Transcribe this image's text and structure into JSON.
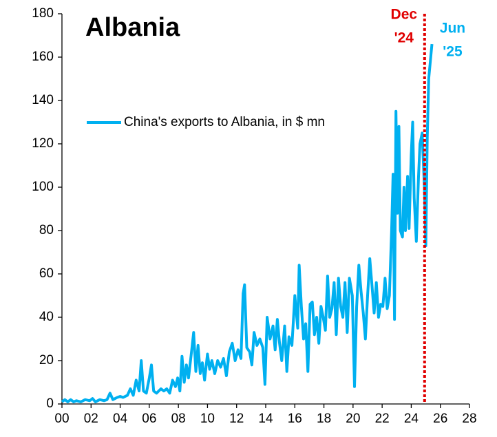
{
  "chart_data": {
    "type": "line",
    "title": "Albania",
    "xlim": [
      0,
      28
    ],
    "xticks": [
      {
        "value": 0,
        "label": "00"
      },
      {
        "value": 2,
        "label": "02"
      },
      {
        "value": 4,
        "label": "04"
      },
      {
        "value": 6,
        "label": "06"
      },
      {
        "value": 8,
        "label": "08"
      },
      10,
      12,
      14,
      16,
      18,
      20,
      22,
      24,
      26,
      28
    ],
    "ylim": [
      0,
      180
    ],
    "yticks": [
      0,
      20,
      40,
      60,
      80,
      100,
      120,
      140,
      160,
      180
    ],
    "legend": "left",
    "x": [
      0,
      0.2,
      0.4,
      0.6,
      0.8,
      1,
      1.3,
      1.6,
      1.9,
      2.1,
      2.3,
      2.6,
      2.9,
      3.1,
      3.3,
      3.5,
      3.8,
      4.0,
      4.2,
      4.5,
      4.7,
      4.9,
      5.1,
      5.3,
      5.45,
      5.6,
      5.8,
      6.0,
      6.15,
      6.3,
      6.5,
      6.8,
      7.0,
      7.2,
      7.4,
      7.6,
      7.8,
      7.95,
      8.1,
      8.25,
      8.4,
      8.55,
      8.7,
      8.9,
      9.05,
      9.2,
      9.35,
      9.5,
      9.65,
      9.8,
      10.0,
      10.15,
      10.3,
      10.5,
      10.7,
      10.9,
      11.1,
      11.3,
      11.5,
      11.7,
      11.9,
      12.1,
      12.3,
      12.45,
      12.55,
      12.7,
      12.9,
      13.05,
      13.2,
      13.4,
      13.6,
      13.8,
      13.95,
      14.1,
      14.3,
      14.5,
      14.65,
      14.8,
      14.95,
      15.1,
      15.3,
      15.45,
      15.6,
      15.8,
      16.0,
      16.2,
      16.3,
      16.45,
      16.6,
      16.75,
      16.9,
      17.05,
      17.2,
      17.35,
      17.5,
      17.65,
      17.8,
      17.95,
      18.1,
      18.25,
      18.4,
      18.55,
      18.7,
      18.85,
      19.0,
      19.15,
      19.3,
      19.45,
      19.6,
      19.75,
      19.95,
      20.1,
      20.25,
      20.4,
      20.55,
      20.7,
      20.85,
      21.0,
      21.15,
      21.3,
      21.45,
      21.6,
      21.75,
      21.9,
      22.05,
      22.2,
      22.35,
      22.5,
      22.65,
      22.75,
      22.85,
      22.95,
      23.05,
      23.15,
      23.25,
      23.4,
      23.5,
      23.6,
      23.75,
      23.85,
      24.0,
      24.1,
      24.2,
      24.35,
      24.5,
      24.6,
      24.75,
      24.9,
      25.0,
      25.1,
      25.2,
      25.42
    ],
    "series": [
      {
        "name": "China's exports to Albania, in $ mn",
        "color": "#00b0f0",
        "values": [
          1,
          2,
          1,
          2,
          1,
          1.5,
          1,
          2,
          1.5,
          2.5,
          1,
          2,
          1.5,
          2,
          5,
          2,
          3,
          3.5,
          3,
          4,
          7,
          4,
          11,
          6,
          20,
          6,
          5,
          12,
          18,
          6,
          5,
          7,
          6,
          7,
          5,
          11,
          8,
          12,
          6,
          22,
          10,
          18,
          12,
          24,
          33,
          15,
          27,
          14,
          19,
          11,
          23,
          16,
          20,
          14,
          20,
          17,
          21,
          13,
          24,
          28,
          20,
          25,
          21,
          51,
          55,
          26,
          24,
          18,
          33,
          27,
          30,
          26,
          9,
          40,
          30,
          36,
          25,
          39,
          28,
          20,
          36,
          15,
          31,
          27,
          50,
          35,
          64,
          45,
          30,
          37,
          15,
          46,
          47,
          32,
          40,
          28,
          45,
          40,
          34,
          59,
          40,
          44,
          56,
          32,
          58,
          45,
          40,
          56,
          33,
          58,
          50,
          8,
          45,
          64,
          52,
          42,
          30,
          50,
          67,
          55,
          42,
          56,
          40,
          46,
          45,
          58,
          44,
          50,
          80,
          106,
          39,
          135,
          88,
          128,
          80,
          77,
          100,
          80,
          105,
          81,
          115,
          130,
          95,
          75,
          105,
          120,
          125,
          100,
          73,
          123,
          150,
          166
        ]
      }
    ],
    "vline": {
      "x": 24.917,
      "color": "#e00000"
    },
    "annotations": [
      {
        "lines": [
          "Dec",
          "'24"
        ],
        "color": "#e00000"
      },
      {
        "lines": [
          "Jun",
          "'25"
        ],
        "color": "#00b0f0"
      }
    ]
  }
}
